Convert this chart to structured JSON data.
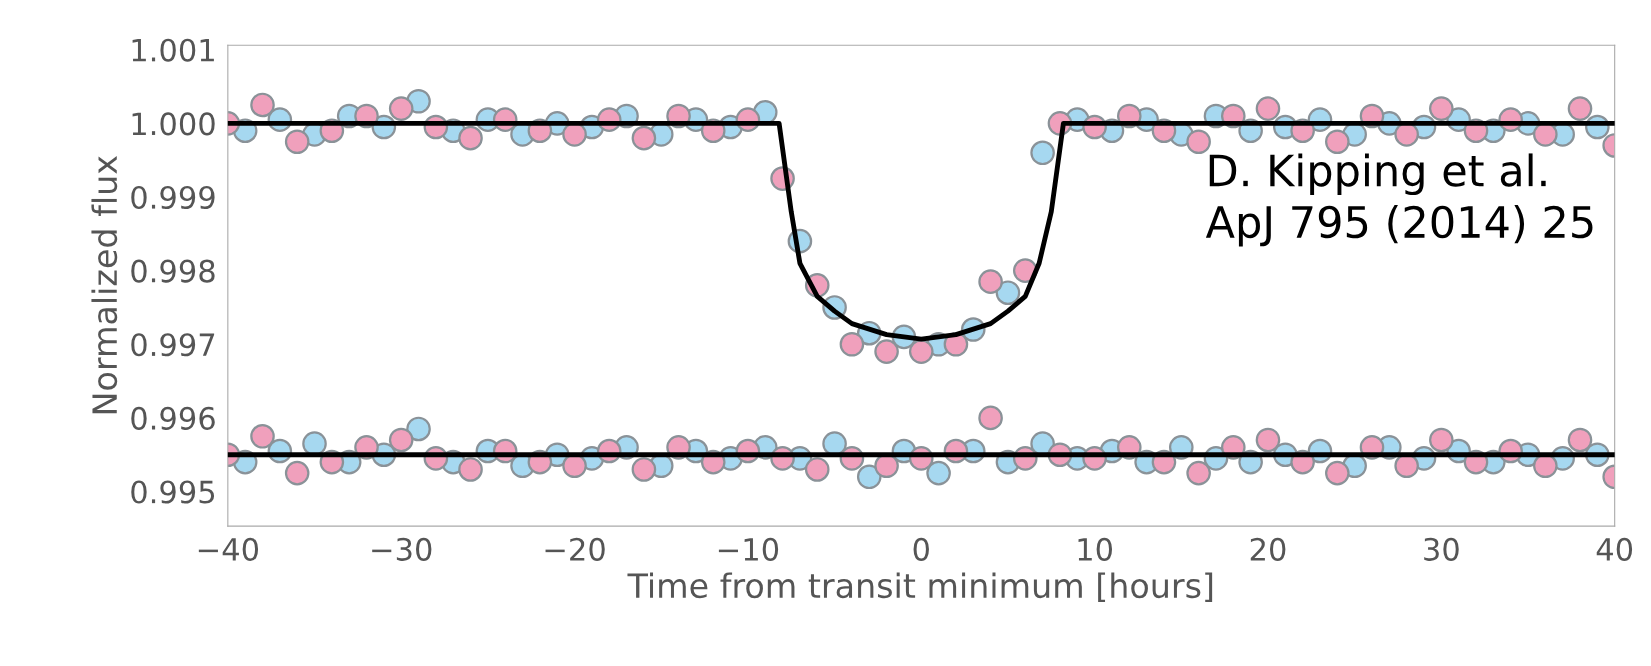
{
  "chart_data": {
    "type": "scatter",
    "xlabel": "Time from transit minimum [hours]",
    "ylabel": "Normalized flux",
    "annotations": [
      "D. Kipping et al.\nApJ 795 (2014) 25"
    ],
    "xlim": [
      -40,
      40
    ],
    "xticks": [
      {
        "value": -40,
        "label": "−40"
      },
      {
        "value": -30,
        "label": "−30"
      },
      {
        "value": -20,
        "label": "−20"
      },
      {
        "value": -10,
        "label": "−10"
      },
      0,
      10,
      20,
      30,
      40
    ],
    "ylim": [
      0.99453,
      1.00106
    ],
    "yticks": [
      0.995,
      0.996,
      0.997,
      0.998,
      0.999,
      "1.000",
      1.001
    ],
    "grid": false,
    "legend": false,
    "marker": "circle",
    "series": [
      {
        "color": "#a6d8f0",
        "x": [
          -39,
          -37,
          -35,
          -33,
          -31,
          -29,
          -27,
          -25,
          -23,
          -21,
          -19,
          -17,
          -15,
          -13,
          -11,
          -9,
          -7,
          -5,
          -3,
          -1,
          1,
          3,
          5,
          7,
          9,
          11,
          13,
          15,
          17,
          19,
          21,
          23,
          25,
          27,
          29,
          31,
          33,
          35,
          37,
          39
        ],
        "values": [
          0.9999,
          1.00005,
          0.99985,
          1.0001,
          0.99995,
          1.0003,
          0.9999,
          1.00005,
          0.99985,
          1.0,
          0.99995,
          1.0001,
          0.99985,
          1.00005,
          0.99995,
          1.00015,
          0.9984,
          0.9975,
          0.99715,
          0.9971,
          0.997,
          0.9972,
          0.9977,
          0.9996,
          1.00005,
          0.9999,
          1.00005,
          0.99985,
          1.0001,
          0.9999,
          0.99995,
          1.00005,
          0.99985,
          1.0,
          0.99995,
          1.00005,
          0.9999,
          1.0,
          0.99985,
          0.99995
        ]
      },
      {
        "color": "#f0a0bc",
        "x": [
          -40,
          -38,
          -36,
          -34,
          -32,
          -30,
          -28,
          -26,
          -24,
          -22,
          -20,
          -18,
          -16,
          -14,
          -12,
          -10,
          -8,
          -6,
          -4,
          -2,
          0,
          2,
          4,
          6,
          8,
          10,
          12,
          14,
          16,
          18,
          20,
          22,
          24,
          26,
          28,
          30,
          32,
          34,
          36,
          38,
          40
        ],
        "values": [
          1.0,
          1.00025,
          0.99975,
          0.9999,
          1.0001,
          1.0002,
          0.99995,
          0.9998,
          1.00005,
          0.9999,
          0.99985,
          1.00005,
          0.9998,
          1.0001,
          0.9999,
          1.00005,
          0.99925,
          0.9978,
          0.997,
          0.9969,
          0.9969,
          0.997,
          0.99785,
          0.998,
          1.0,
          0.99995,
          1.0001,
          0.9999,
          0.99975,
          1.0001,
          1.0002,
          0.9999,
          0.99975,
          1.0001,
          0.99985,
          1.0002,
          0.9999,
          1.00005,
          0.99985,
          1.0002,
          0.9997
        ]
      },
      {
        "color": "#a6d8f0",
        "x": [
          -39,
          -37,
          -35,
          -33,
          -31,
          -29,
          -27,
          -25,
          -23,
          -21,
          -19,
          -17,
          -15,
          -13,
          -11,
          -9,
          -7,
          -5,
          -3,
          -1,
          1,
          3,
          5,
          7,
          9,
          11,
          13,
          15,
          17,
          19,
          21,
          23,
          25,
          27,
          29,
          31,
          33,
          35,
          37,
          39
        ],
        "values": [
          0.9954,
          0.99555,
          0.99565,
          0.9954,
          0.9955,
          0.99585,
          0.9954,
          0.99555,
          0.99535,
          0.9955,
          0.99545,
          0.9956,
          0.99535,
          0.99555,
          0.99545,
          0.9956,
          0.99545,
          0.99565,
          0.9952,
          0.99555,
          0.99525,
          0.99555,
          0.9954,
          0.99565,
          0.99545,
          0.99555,
          0.9954,
          0.9956,
          0.99545,
          0.9954,
          0.9955,
          0.99555,
          0.99535,
          0.9956,
          0.99545,
          0.99555,
          0.9954,
          0.9955,
          0.99545,
          0.9955
        ]
      },
      {
        "color": "#f0a0bc",
        "x": [
          -40,
          -38,
          -36,
          -34,
          -32,
          -30,
          -28,
          -26,
          -24,
          -22,
          -20,
          -18,
          -16,
          -14,
          -12,
          -10,
          -8,
          -6,
          -4,
          -2,
          0,
          2,
          4,
          6,
          8,
          10,
          12,
          14,
          16,
          18,
          20,
          22,
          24,
          26,
          28,
          30,
          32,
          34,
          36,
          38,
          40
        ],
        "values": [
          0.9955,
          0.99575,
          0.99525,
          0.9954,
          0.9956,
          0.9957,
          0.99545,
          0.9953,
          0.99555,
          0.9954,
          0.99535,
          0.99555,
          0.9953,
          0.9956,
          0.9954,
          0.99555,
          0.99545,
          0.9953,
          0.99545,
          0.99535,
          0.99545,
          0.99555,
          0.996,
          0.99545,
          0.9955,
          0.99545,
          0.9956,
          0.9954,
          0.99525,
          0.9956,
          0.9957,
          0.9954,
          0.99525,
          0.9956,
          0.99535,
          0.9957,
          0.9954,
          0.99555,
          0.99535,
          0.9957,
          0.9952
        ]
      },
      {
        "type": "line",
        "marker": "none",
        "color": "#000000",
        "x": [
          -40,
          -8.2,
          -7.5,
          -7,
          -6,
          -5,
          -4,
          -2,
          0,
          2,
          4,
          5,
          6,
          6.8,
          7.5,
          8.2,
          40
        ],
        "values": [
          1.0,
          1.0,
          0.9988,
          0.9981,
          0.99765,
          0.99745,
          0.99728,
          0.99713,
          0.99707,
          0.99713,
          0.99728,
          0.99745,
          0.99765,
          0.9981,
          0.9988,
          1.0,
          1.0
        ]
      },
      {
        "type": "line",
        "marker": "none",
        "color": "#000000",
        "x": [
          -40,
          40
        ],
        "values": [
          0.9955,
          0.9955
        ]
      }
    ]
  }
}
